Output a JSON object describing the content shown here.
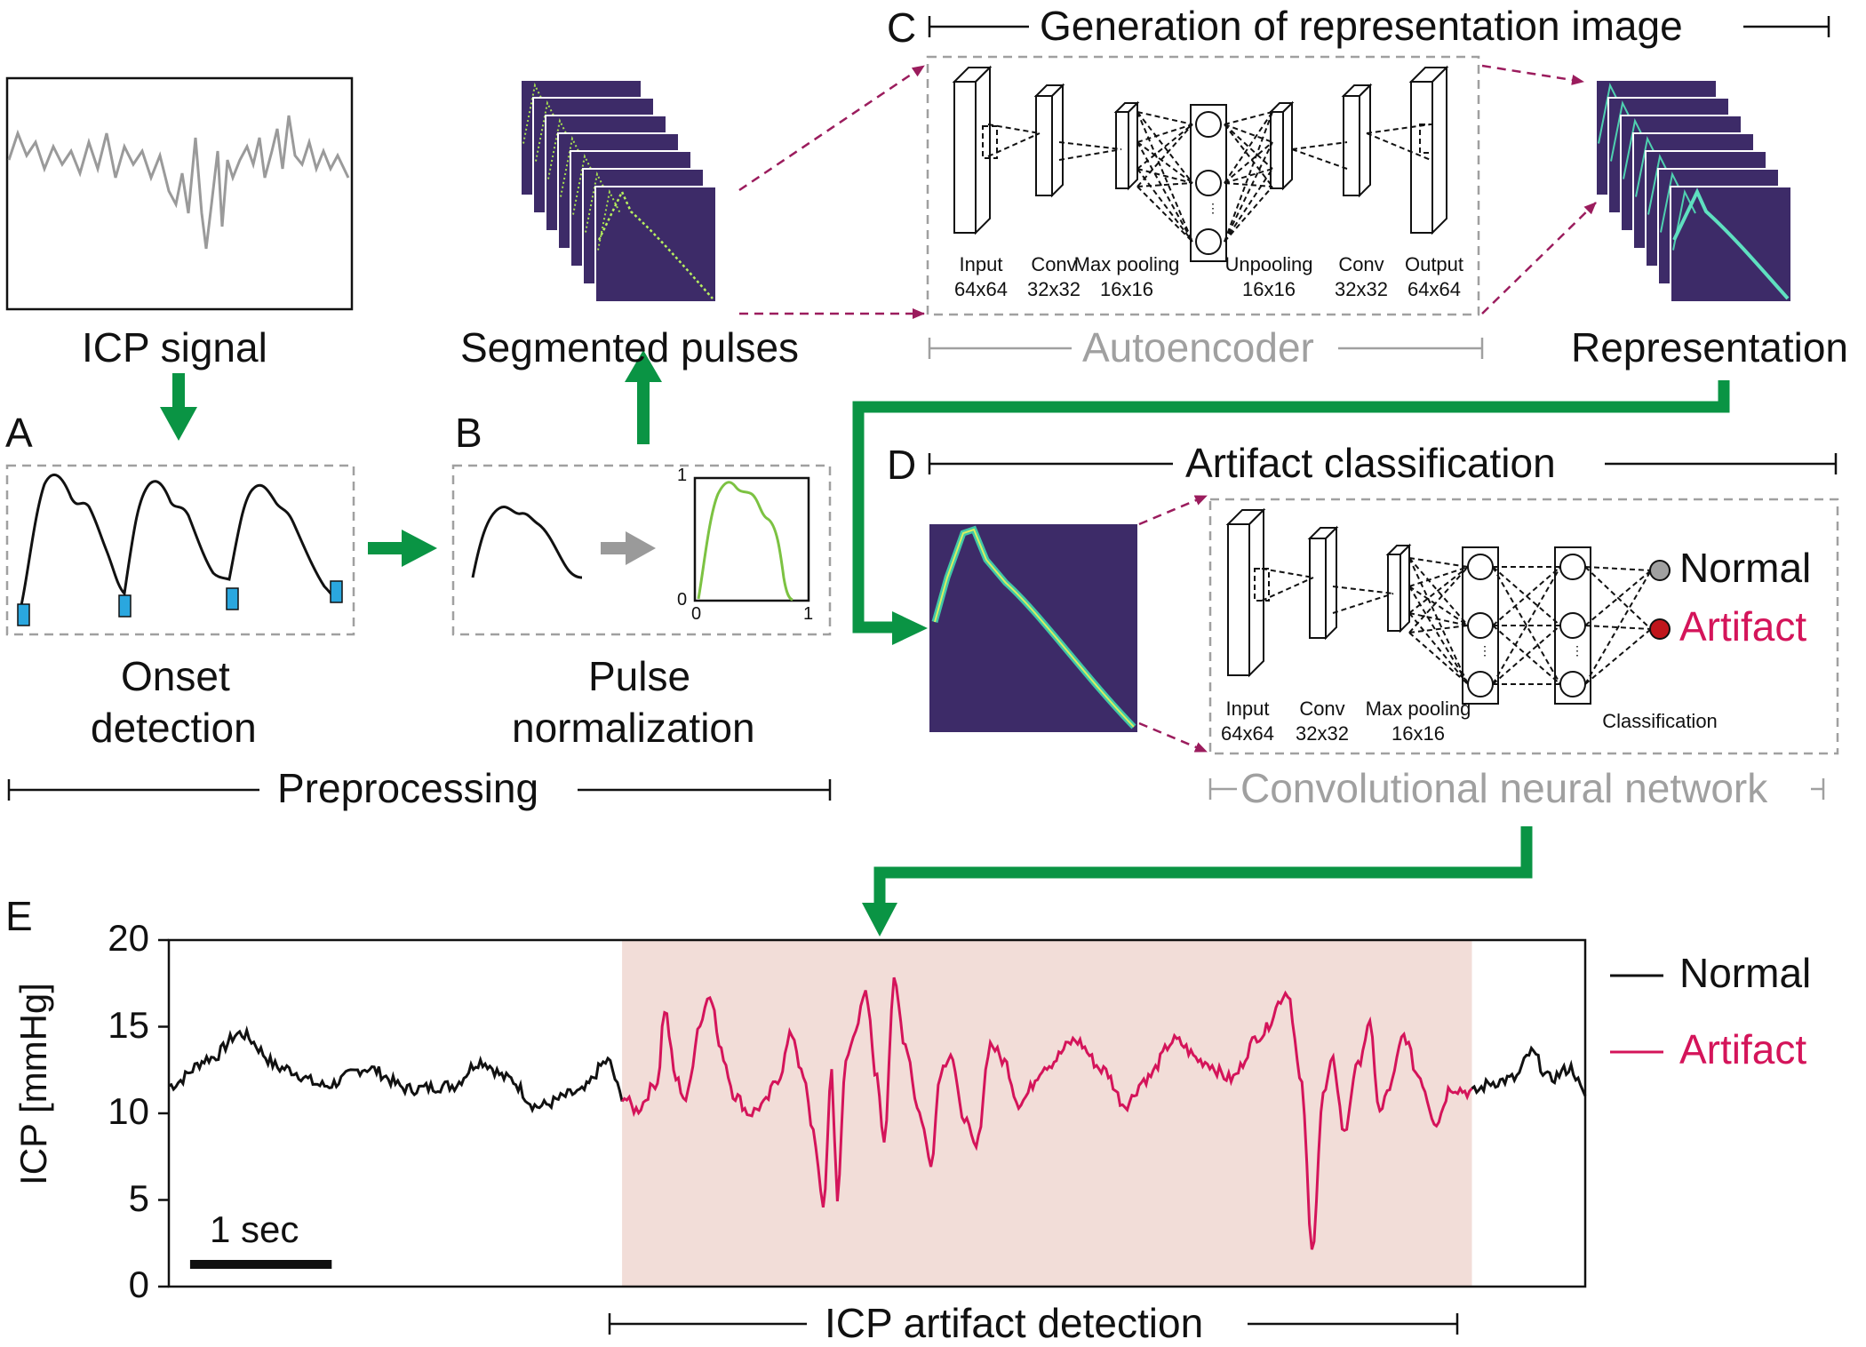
{
  "panel_letters": {
    "a": "A",
    "b": "B",
    "c": "C",
    "d": "D",
    "e": "E"
  },
  "labels": {
    "icp_signal": "ICP signal",
    "segmented_pulses": "Segmented pulses",
    "representation": "Representation",
    "onset_line1": "Onset",
    "onset_line2": "detection",
    "pulse_line1": "Pulse",
    "pulse_line2": "normalization",
    "preprocessing": "Preprocessing",
    "generation": "Generation of representation image",
    "autoencoder": "Autoencoder",
    "artifact_classification": "Artifact classification",
    "cnn": "Convolutional neural network",
    "icp_artifact_detection": "ICP artifact detection",
    "normal": "Normal",
    "artifact": "Artifact"
  },
  "normalization_plot": {
    "y_top": "1",
    "y_bottom": "0",
    "x_left": "0",
    "x_right": "1"
  },
  "autoencoder_layers": [
    {
      "name": "Input",
      "size": "64x64"
    },
    {
      "name": "Conv",
      "size": "32x32"
    },
    {
      "name": "Max pooling",
      "size": "16x16"
    },
    {
      "name": "Unpooling",
      "size": "16x16"
    },
    {
      "name": "Conv",
      "size": "32x32"
    },
    {
      "name": "Output",
      "size": "64x64"
    }
  ],
  "cnn_layers": [
    {
      "name": "Input",
      "size": "64x64"
    },
    {
      "name": "Conv",
      "size": "32x32"
    },
    {
      "name": "Max pooling",
      "size": "16x16"
    },
    {
      "name": "Classification",
      "size": ""
    }
  ],
  "chart_data": {
    "type": "line",
    "ylabel": "ICP [mmHg]",
    "ylim": [
      0,
      20
    ],
    "yticks": [
      "0",
      "5",
      "10",
      "15",
      "20"
    ],
    "scalebar_label": "1 sec",
    "duration_sec": 10,
    "artifact_region_sec": [
      3.2,
      9.2
    ],
    "series": [
      {
        "name": "Normal",
        "color": "#111111"
      },
      {
        "name": "Artifact",
        "color": "#d4145a"
      }
    ],
    "anchor_points": [
      [
        0.0,
        11.6
      ],
      [
        0.3,
        13.2
      ],
      [
        0.5,
        14.6
      ],
      [
        0.8,
        12.6
      ],
      [
        1.1,
        11.6
      ],
      [
        1.4,
        12.6
      ],
      [
        1.7,
        11.4
      ],
      [
        2.0,
        11.6
      ],
      [
        2.2,
        13.0
      ],
      [
        2.4,
        12.0
      ],
      [
        2.6,
        10.4
      ],
      [
        2.9,
        11.2
      ],
      [
        3.1,
        13.0
      ],
      [
        3.2,
        11.0
      ],
      [
        3.3,
        10.2
      ],
      [
        3.45,
        11.8
      ],
      [
        3.5,
        16.0
      ],
      [
        3.58,
        12.0
      ],
      [
        3.65,
        10.8
      ],
      [
        3.75,
        15.2
      ],
      [
        3.82,
        17.0
      ],
      [
        3.9,
        13.5
      ],
      [
        4.0,
        11.0
      ],
      [
        4.1,
        10.0
      ],
      [
        4.2,
        10.5
      ],
      [
        4.3,
        12.0
      ],
      [
        4.4,
        14.6
      ],
      [
        4.48,
        12.0
      ],
      [
        4.55,
        9.0
      ],
      [
        4.62,
        4.5
      ],
      [
        4.68,
        12.5
      ],
      [
        4.72,
        5.0
      ],
      [
        4.78,
        13.0
      ],
      [
        4.85,
        15.0
      ],
      [
        4.92,
        16.8
      ],
      [
        5.0,
        12.0
      ],
      [
        5.05,
        8.5
      ],
      [
        5.12,
        17.5
      ],
      [
        5.2,
        14.0
      ],
      [
        5.3,
        10.0
      ],
      [
        5.38,
        7.2
      ],
      [
        5.45,
        12.5
      ],
      [
        5.52,
        13.5
      ],
      [
        5.6,
        10.0
      ],
      [
        5.7,
        8.0
      ],
      [
        5.8,
        14.0
      ],
      [
        5.9,
        13.0
      ],
      [
        6.0,
        10.6
      ],
      [
        6.2,
        12.8
      ],
      [
        6.4,
        14.2
      ],
      [
        6.6,
        12.5
      ],
      [
        6.75,
        10.5
      ],
      [
        6.9,
        12.0
      ],
      [
        7.1,
        14.2
      ],
      [
        7.3,
        13.0
      ],
      [
        7.5,
        12.0
      ],
      [
        7.7,
        14.5
      ],
      [
        7.9,
        17.0
      ],
      [
        8.0,
        11.5
      ],
      [
        8.07,
        2.0
      ],
      [
        8.15,
        11.0
      ],
      [
        8.22,
        13.0
      ],
      [
        8.3,
        8.8
      ],
      [
        8.38,
        12.5
      ],
      [
        8.48,
        15.0
      ],
      [
        8.55,
        10.0
      ],
      [
        8.62,
        11.5
      ],
      [
        8.72,
        14.5
      ],
      [
        8.82,
        12.2
      ],
      [
        8.95,
        9.5
      ],
      [
        9.05,
        11.5
      ],
      [
        9.2,
        11.2
      ],
      [
        9.35,
        11.8
      ],
      [
        9.5,
        12.0
      ],
      [
        9.62,
        13.5
      ],
      [
        9.75,
        12.0
      ],
      [
        9.9,
        12.6
      ],
      [
        10.0,
        11.0
      ]
    ]
  },
  "colors": {
    "green": "#0a9444",
    "purple_dash": "#9b1c5d",
    "viridis_bg": "#3d2b68",
    "artifact_shade": "#f2ddd8",
    "onset_marker": "#2aa7df",
    "norm_curve": "#7cc242"
  }
}
